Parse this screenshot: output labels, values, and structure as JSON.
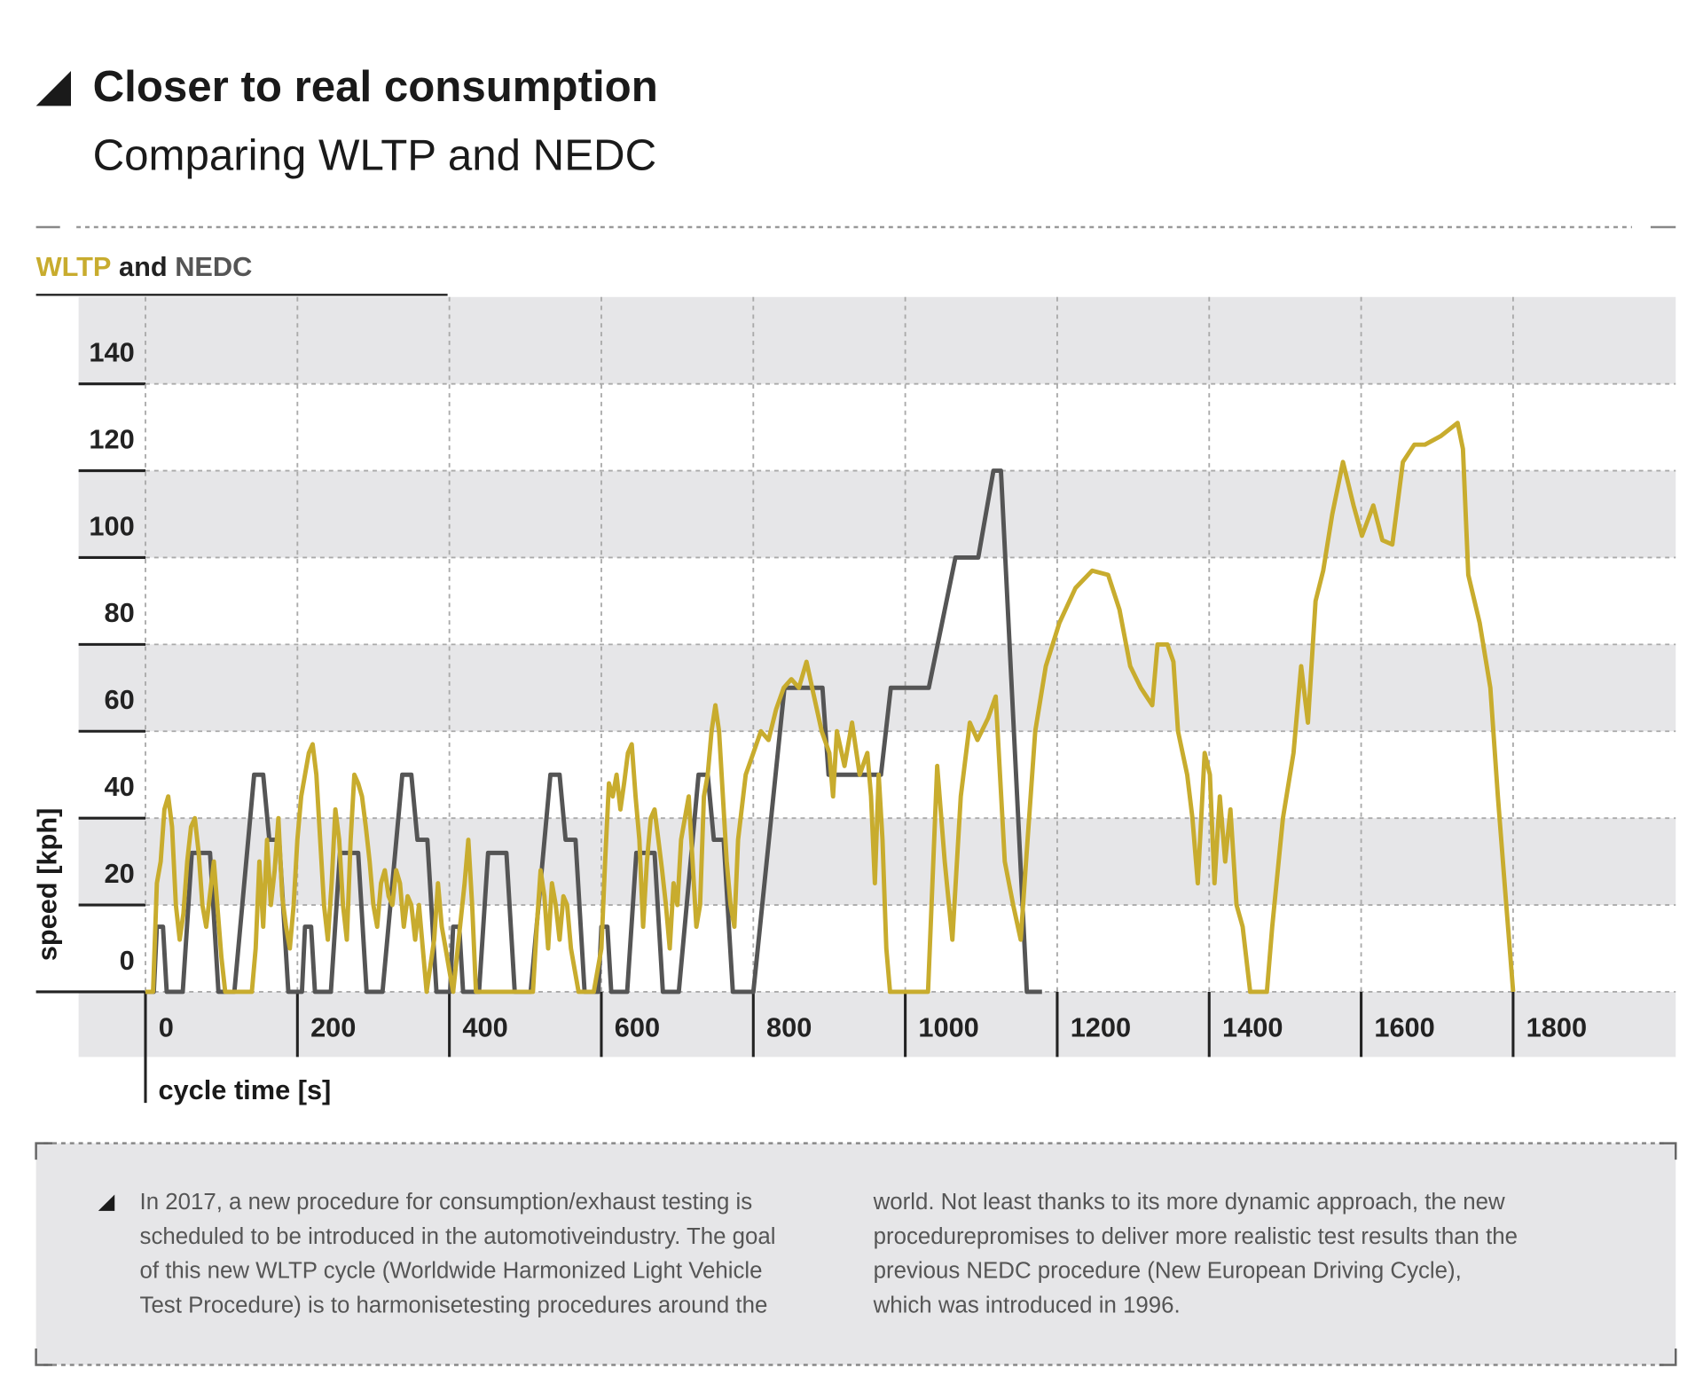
{
  "chart_data": {
    "type": "line",
    "title": "Closer to real consumption",
    "subtitle": "Comparing WLTP and NEDC",
    "legend_separator": "and",
    "y_label": "speed [kph]",
    "x_label": "cycle time [s]",
    "xlim": [
      -88,
      2014
    ],
    "ylim": [
      -15,
      160
    ],
    "xticks": [
      0,
      200,
      400,
      600,
      800,
      1000,
      1200,
      1400,
      1600,
      1800
    ],
    "yticks": [
      0,
      20,
      40,
      60,
      80,
      100,
      120,
      140
    ],
    "grid": true,
    "series": [
      {
        "name": "NEDC",
        "color": "#555555",
        "x": [
          0,
          11,
          15,
          23,
          28,
          49,
          61,
          85,
          96,
          117,
          143,
          155,
          163,
          176,
          188,
          195,
          206,
          210,
          218,
          223,
          244,
          256,
          280,
          291,
          312,
          338,
          350,
          358,
          371,
          383,
          390,
          401,
          405,
          413,
          418,
          439,
          451,
          475,
          486,
          507,
          533,
          545,
          553,
          566,
          578,
          585,
          596,
          600,
          608,
          613,
          634,
          646,
          670,
          681,
          702,
          728,
          740,
          748,
          761,
          773,
          780,
          800,
          841,
          891,
          899,
          968,
          981,
          1031,
          1066,
          1096,
          1116,
          1126,
          1160,
          1180
        ],
        "values": [
          0,
          0,
          15,
          15,
          0,
          0,
          32,
          32,
          0,
          0,
          50,
          50,
          35,
          35,
          0,
          0,
          0,
          15,
          15,
          0,
          0,
          32,
          32,
          0,
          0,
          50,
          50,
          35,
          35,
          0,
          0,
          0,
          15,
          15,
          0,
          0,
          32,
          32,
          0,
          0,
          50,
          50,
          35,
          35,
          0,
          0,
          0,
          15,
          15,
          0,
          0,
          32,
          32,
          0,
          0,
          50,
          50,
          35,
          35,
          0,
          0,
          0,
          70,
          70,
          50,
          50,
          70,
          70,
          100,
          100,
          120,
          120,
          0,
          0
        ]
      },
      {
        "name": "WLTP",
        "color": "#c8ac2e",
        "x": [
          0,
          10,
          15,
          20,
          25,
          30,
          35,
          40,
          45,
          50,
          55,
          60,
          65,
          70,
          75,
          80,
          90,
          100,
          105,
          140,
          145,
          150,
          155,
          160,
          165,
          170,
          175,
          180,
          185,
          190,
          195,
          200,
          205,
          210,
          215,
          220,
          225,
          230,
          235,
          240,
          245,
          250,
          255,
          260,
          265,
          270,
          275,
          280,
          285,
          290,
          295,
          300,
          305,
          310,
          315,
          320,
          325,
          330,
          335,
          340,
          345,
          350,
          355,
          360,
          365,
          370,
          380,
          385,
          390,
          395,
          400,
          405,
          420,
          425,
          430,
          435,
          510,
          515,
          520,
          525,
          530,
          535,
          540,
          545,
          550,
          555,
          560,
          565,
          570,
          590,
          600,
          605,
          610,
          615,
          620,
          625,
          630,
          635,
          640,
          645,
          650,
          655,
          660,
          665,
          670,
          675,
          680,
          685,
          690,
          695,
          700,
          705,
          710,
          715,
          720,
          725,
          730,
          735,
          740,
          745,
          750,
          755,
          760,
          765,
          770,
          775,
          780,
          790,
          800,
          810,
          820,
          830,
          840,
          850,
          860,
          870,
          880,
          890,
          900,
          905,
          910,
          920,
          930,
          940,
          950,
          955,
          960,
          965,
          970,
          975,
          980,
          1030,
          1042,
          1052,
          1062,
          1073,
          1085,
          1095,
          1109,
          1119,
          1131,
          1142,
          1152,
          1159,
          1171,
          1185,
          1203,
          1224,
          1246,
          1267,
          1282,
          1296,
          1310,
          1325,
          1332,
          1345,
          1353,
          1359,
          1371,
          1378,
          1385,
          1394,
          1401,
          1407,
          1414,
          1421,
          1428,
          1436,
          1444,
          1454,
          1476,
          1483,
          1497,
          1511,
          1521,
          1530,
          1540,
          1550,
          1562,
          1576,
          1590,
          1601,
          1616,
          1628,
          1641,
          1655,
          1670,
          1684,
          1705,
          1727,
          1734,
          1741,
          1756,
          1770,
          1780,
          1791,
          1800
        ],
        "values": [
          0,
          0,
          25,
          30,
          42,
          45,
          38,
          20,
          12,
          18,
          30,
          38,
          40,
          32,
          20,
          15,
          30,
          8,
          0,
          0,
          10,
          30,
          15,
          35,
          20,
          28,
          40,
          22,
          15,
          10,
          20,
          35,
          45,
          50,
          55,
          57,
          50,
          35,
          20,
          12,
          25,
          42,
          35,
          20,
          12,
          35,
          50,
          48,
          45,
          38,
          30,
          20,
          15,
          25,
          28,
          22,
          20,
          28,
          25,
          15,
          22,
          20,
          12,
          20,
          10,
          0,
          12,
          25,
          15,
          10,
          5,
          0,
          25,
          35,
          20,
          0,
          0,
          15,
          28,
          22,
          10,
          25,
          20,
          12,
          22,
          20,
          10,
          5,
          0,
          0,
          10,
          30,
          48,
          45,
          50,
          42,
          48,
          55,
          57,
          45,
          35,
          15,
          30,
          40,
          42,
          35,
          28,
          20,
          10,
          25,
          20,
          35,
          40,
          45,
          30,
          15,
          20,
          45,
          50,
          60,
          66,
          60,
          45,
          30,
          20,
          15,
          35,
          50,
          55,
          60,
          58,
          65,
          70,
          72,
          70,
          76,
          68,
          60,
          55,
          45,
          60,
          52,
          62,
          50,
          55,
          45,
          25,
          50,
          35,
          10,
          0,
          0,
          52,
          30,
          12,
          45,
          62,
          58,
          63,
          68,
          30,
          20,
          12,
          30,
          60,
          75,
          85,
          93,
          97,
          96,
          88,
          75,
          70,
          66,
          80,
          80,
          76,
          60,
          50,
          40,
          25,
          55,
          50,
          25,
          45,
          30,
          42,
          20,
          15,
          0,
          0,
          15,
          40,
          55,
          75,
          62,
          90,
          97,
          110,
          122,
          112,
          105,
          112,
          104,
          103,
          122,
          126,
          126,
          128,
          131,
          125,
          96,
          85,
          70,
          45,
          20,
          0
        ]
      }
    ]
  },
  "note": {
    "columns": [
      [
        "In 2017, a new procedure for consumption/exhaust testing is",
        "scheduled to be introduced in the automotiveindustry. The goal",
        "of this new WLTP cycle (Worldwide Harmonized Light Vehicle",
        "Test Procedure) is to harmonisetesting procedures around the"
      ],
      [
        "world. Not least thanks to its more dynamic approach, the new",
        "procedurepromises to deliver more realistic test results than the",
        "previous NEDC procedure (New European Driving Cycle),",
        "which was introduced in 1996."
      ]
    ]
  }
}
